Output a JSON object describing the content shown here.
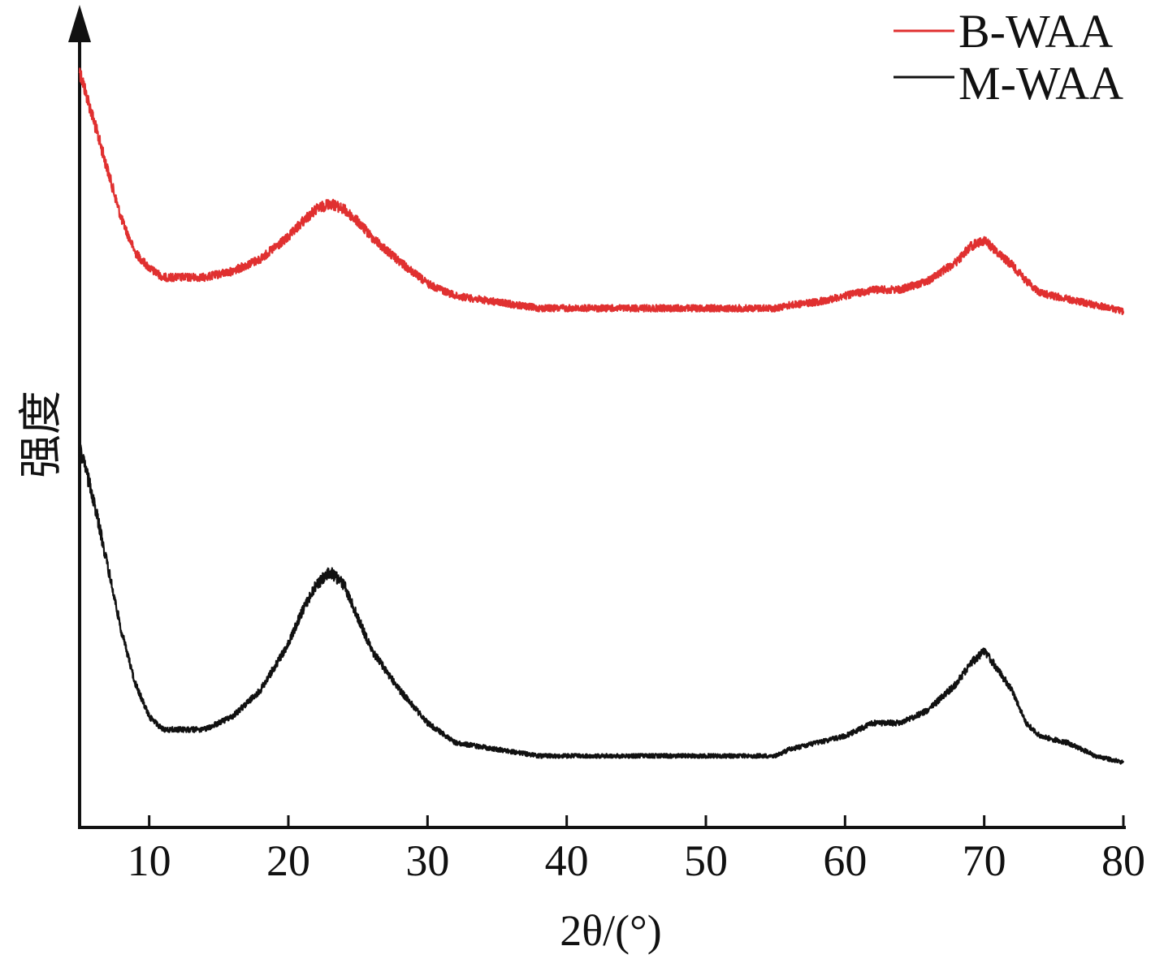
{
  "chart_data": {
    "type": "line",
    "xlabel": "2θ/(°)",
    "ylabel": "强度",
    "xlim": [
      5,
      80
    ],
    "x_ticks": [
      "10",
      "20",
      "30",
      "40",
      "50",
      "60",
      "70",
      "80"
    ],
    "y_ticks": [],
    "grid": false,
    "legend_position": "top-right",
    "series": [
      {
        "name": "B-WAA",
        "color": "#e03030",
        "x": [
          5,
          6,
          7,
          8,
          9,
          10,
          11,
          12,
          13,
          14,
          16,
          18,
          20,
          21,
          22,
          23,
          24,
          25,
          26,
          28,
          30,
          32,
          35,
          38,
          40,
          45,
          50,
          55,
          56,
          58,
          60,
          61,
          62,
          64,
          66,
          68,
          69,
          70,
          71,
          72,
          73,
          74,
          76,
          78,
          80
        ],
        "y": [
          100,
          84,
          68,
          52,
          41,
          36,
          33,
          33,
          33,
          33,
          35,
          39,
          46,
          51,
          55,
          57,
          55,
          51,
          46,
          38,
          31,
          27,
          25,
          23,
          23,
          23,
          23,
          23,
          24,
          25,
          27,
          28,
          29,
          29,
          32,
          38,
          43,
          45,
          41,
          37,
          32,
          28,
          26,
          24,
          22
        ]
      },
      {
        "name": "M-WAA",
        "color": "#111111",
        "x": [
          5,
          6,
          7,
          8,
          9,
          10,
          11,
          12,
          13,
          14,
          16,
          18,
          20,
          21,
          22,
          23,
          24,
          25,
          26,
          28,
          30,
          32,
          35,
          38,
          40,
          45,
          50,
          55,
          56,
          58,
          60,
          61,
          62,
          64,
          66,
          68,
          69,
          70,
          71,
          72,
          73,
          74,
          76,
          78,
          80
        ],
        "y": [
          48,
          40,
          30,
          20,
          12,
          7,
          5,
          5,
          5,
          5,
          7,
          11,
          18,
          23,
          27,
          29,
          27,
          22,
          17,
          11,
          6,
          3,
          2,
          1,
          1,
          1,
          1,
          1,
          2,
          3,
          4,
          5,
          6,
          6,
          8,
          12,
          15,
          17,
          14,
          11,
          6,
          4,
          3,
          1,
          0
        ]
      }
    ]
  }
}
